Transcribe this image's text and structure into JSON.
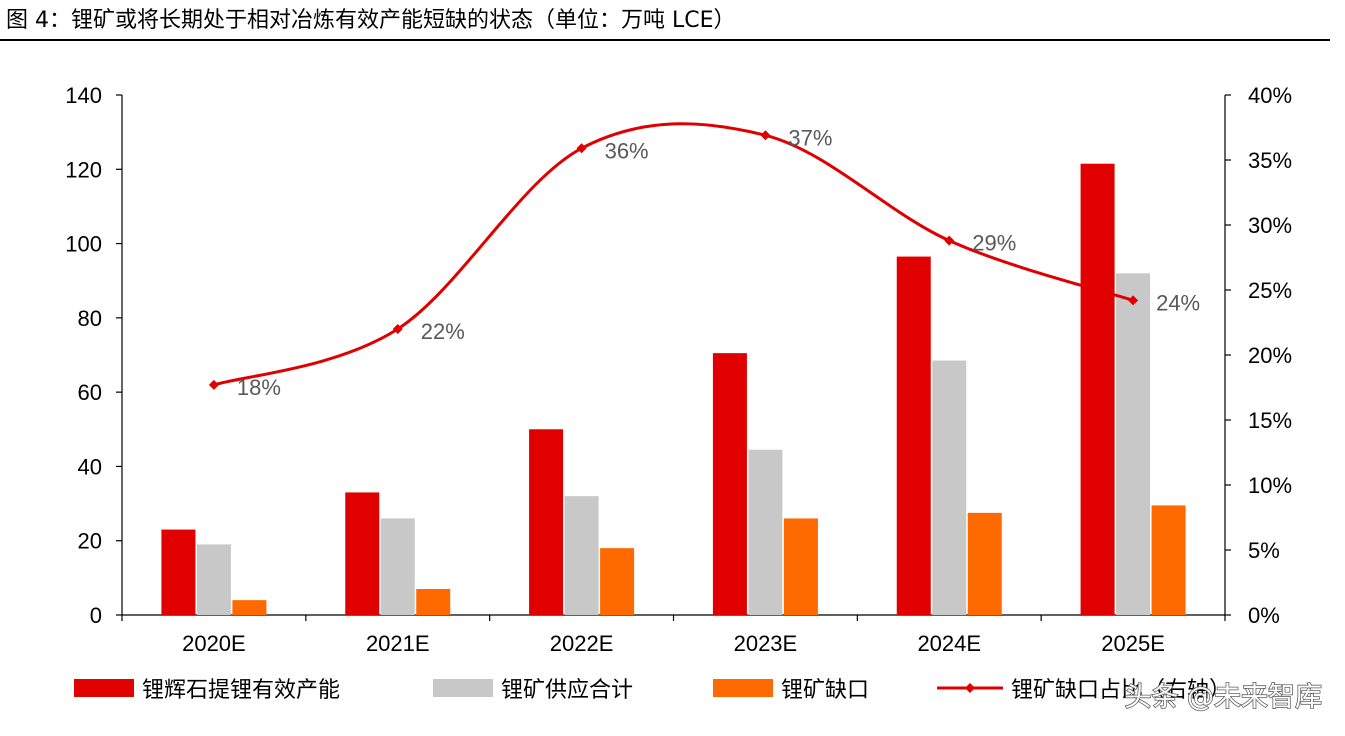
{
  "figure": {
    "title": "图 4：锂矿或将长期处于相对冶炼有效产能短缺的状态（单位：万吨 LCE）"
  },
  "watermark": "头条 @未来智库",
  "chart_data": {
    "type": "bar",
    "categories": [
      "2020E",
      "2021E",
      "2022E",
      "2023E",
      "2024E",
      "2025E"
    ],
    "series": [
      {
        "name": "锂辉石提锂有效产能",
        "type": "bar",
        "axis": "left",
        "color": "#e00000",
        "values": [
          23,
          33,
          50,
          70.5,
          96.5,
          121.5
        ]
      },
      {
        "name": "锂矿供应合计",
        "type": "bar",
        "axis": "left",
        "color": "#c8c8c8",
        "values": [
          19,
          26,
          32,
          44.5,
          68.5,
          92
        ]
      },
      {
        "name": "锂矿缺口",
        "type": "bar",
        "axis": "left",
        "color": "#ff6a00",
        "values": [
          4,
          7,
          18,
          26,
          27.5,
          29.5
        ]
      },
      {
        "name": "锂矿缺口占比（右轴）",
        "type": "line",
        "axis": "right",
        "color": "#e00000",
        "values": [
          0.177,
          0.22,
          0.359,
          0.369,
          0.288,
          0.242
        ],
        "labels": [
          "18%",
          "22%",
          "36%",
          "37%",
          "29%",
          "24%"
        ]
      }
    ],
    "ylim": [
      0,
      140
    ],
    "y_ticks": [
      "0",
      "20",
      "40",
      "60",
      "80",
      "100",
      "120",
      "140"
    ],
    "y2lim": [
      0,
      0.4
    ],
    "y2_ticks": [
      "0%",
      "5%",
      "10%",
      "15%",
      "20%",
      "25%",
      "30%",
      "35%",
      "40%"
    ],
    "grid": false,
    "legend": "bottom",
    "legend_visible_labels": [
      "锂辉石提锂有效产能",
      "锂矿供应合计",
      "锂矿缺口",
      "锂矿缺口占比（右轴）"
    ],
    "smooth_line": true
  }
}
